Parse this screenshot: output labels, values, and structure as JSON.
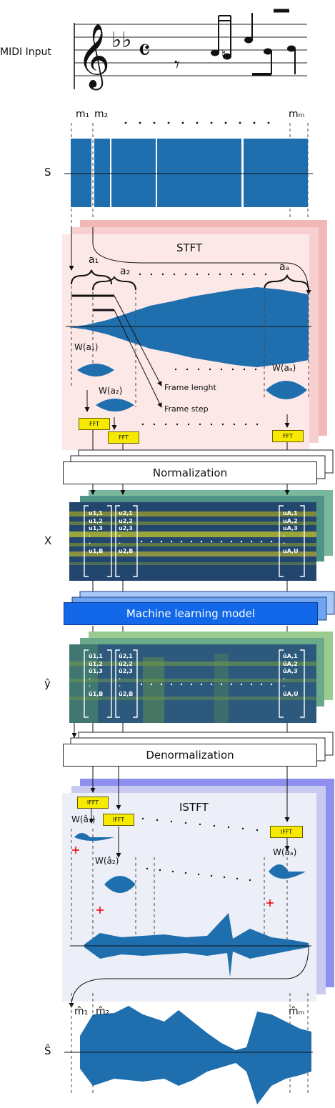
{
  "labels": {
    "midi_input": "MIDI Input",
    "m1": "m₁",
    "m2": "m₂",
    "mM": "mₘ",
    "S": "S",
    "stft": "STFT",
    "a1": "a₁",
    "a2": "a₂",
    "aA": "aₐ",
    "W_a1": "W(a₁)",
    "W_a2": "W(a₂)",
    "W_aA": "W(aₐ)",
    "frame_length": "Frame lenght",
    "frame_step": "Frame step",
    "fft": "FFT",
    "normalization": "Normalization",
    "X": "X",
    "ml_model": "Machine learning model",
    "y_hat": "ŷ",
    "denormalization": "Denormalization",
    "istft": "ISTFT",
    "ifft": "IFFT",
    "W_a1_hat": "W(â₁)",
    "W_a2_hat": "W(â₂)",
    "W_aA_hat": "W(âₐ)",
    "m1_hat": "m̂₁",
    "m2_hat": "m̂₂",
    "mM_hat": "m̂ₘ",
    "S_hat": "Ŝ"
  },
  "matrix_x": {
    "col1": [
      "u1,1",
      "u1,2",
      "u1,3",
      "·",
      "·",
      "u1,B"
    ],
    "col2": [
      "u2,1",
      "u2,2",
      "u2,3",
      "·",
      "·",
      "u2,B"
    ],
    "colA": [
      "uA,1",
      "uA,2",
      "uA,3",
      "·",
      "·",
      "uA,U"
    ]
  },
  "matrix_y": {
    "col1": [
      "û1,1",
      "û1,2",
      "û1,3",
      "·",
      "·",
      "û1,B"
    ],
    "col2": [
      "û2,1",
      "û2,2",
      "û2,3",
      "·",
      "·",
      "û2,B"
    ],
    "colA": [
      "ûA,1",
      "ûA,2",
      "ûA,3",
      "·",
      "·",
      "ûA,U"
    ]
  },
  "colors": {
    "wave": "#1f6fae",
    "stft_panel": "#fde8e8",
    "stft_back": "#f2b8b8",
    "istft_panel": "#eceff7",
    "istft_back": "#8f8ff0",
    "ml_box": "#1268e8",
    "fft_box": "#f5ea00",
    "spectro_dark": "#1e3a6e",
    "spectro_light": "#b7c95a"
  }
}
